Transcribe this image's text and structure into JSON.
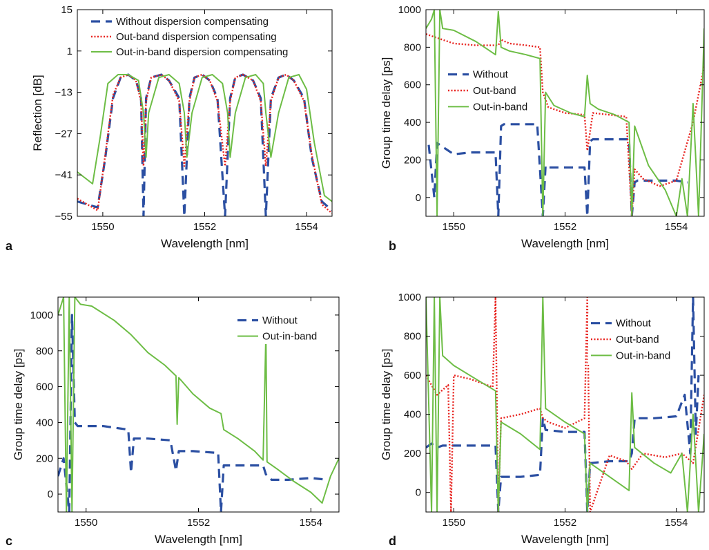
{
  "colors": {
    "without": "#2b4fa2",
    "outband": "#e8231f",
    "outinband": "#6dbd45"
  },
  "chart_data": [
    {
      "panel": "a",
      "type": "line",
      "xlabel": "Wavelength [nm]",
      "ylabel": "Reflection [dB]",
      "xlim": [
        1549.5,
        1554.5
      ],
      "ylim": [
        -55,
        15
      ],
      "xticks": [
        1550,
        1552,
        1554
      ],
      "yticks": [
        15,
        1,
        -13,
        -27,
        -41,
        -55
      ],
      "grid": false,
      "legend_position": "top",
      "series": [
        {
          "name": "Without dispersion compensating",
          "style": "dashed",
          "color_key": "without",
          "x": [
            1549.5,
            1549.9,
            1550.05,
            1550.2,
            1550.35,
            1550.5,
            1550.65,
            1550.75,
            1550.8,
            1550.85,
            1550.95,
            1551.15,
            1551.3,
            1551.5,
            1551.6,
            1551.7,
            1551.8,
            1551.95,
            1552.1,
            1552.25,
            1552.4,
            1552.5,
            1552.6,
            1552.75,
            1552.95,
            1553.1,
            1553.2,
            1553.3,
            1553.45,
            1553.6,
            1553.75,
            1553.95,
            1554.1,
            1554.3,
            1554.5
          ],
          "y": [
            -50,
            -52,
            -35,
            -15,
            -8,
            -7,
            -9,
            -15,
            -55,
            -15,
            -8,
            -7,
            -9,
            -15,
            -55,
            -15,
            -8,
            -7,
            -9,
            -15,
            -55,
            -15,
            -8,
            -7,
            -9,
            -15,
            -55,
            -15,
            -8,
            -7,
            -9,
            -15,
            -35,
            -50,
            -53
          ]
        },
        {
          "name": "Out-band dispersion compensating",
          "style": "dotted",
          "color_key": "outband",
          "x": [
            1549.5,
            1549.9,
            1550.05,
            1550.2,
            1550.35,
            1550.5,
            1550.65,
            1550.75,
            1550.8,
            1550.85,
            1550.95,
            1551.15,
            1551.3,
            1551.5,
            1551.6,
            1551.7,
            1551.8,
            1551.95,
            1552.1,
            1552.25,
            1552.4,
            1552.5,
            1552.6,
            1552.75,
            1552.95,
            1553.1,
            1553.2,
            1553.3,
            1553.45,
            1553.6,
            1553.75,
            1553.95,
            1554.1,
            1554.3,
            1554.5
          ],
          "y": [
            -49,
            -53,
            -34,
            -14,
            -8,
            -7,
            -9,
            -16,
            -38,
            -16,
            -8,
            -7,
            -9,
            -16,
            -38,
            -16,
            -8,
            -7,
            -9,
            -16,
            -38,
            -16,
            -8,
            -7,
            -9,
            -16,
            -38,
            -16,
            -8,
            -7,
            -9,
            -16,
            -34,
            -51,
            -54
          ]
        },
        {
          "name": "Out-in-band dispersion compensating",
          "style": "solid",
          "color_key": "outinband",
          "x": [
            1549.5,
            1549.8,
            1549.95,
            1550.1,
            1550.3,
            1550.5,
            1550.7,
            1550.8,
            1550.85,
            1550.9,
            1551.1,
            1551.3,
            1551.5,
            1551.6,
            1551.65,
            1551.75,
            1551.95,
            1552.15,
            1552.35,
            1552.45,
            1552.5,
            1552.6,
            1552.8,
            1553.0,
            1553.15,
            1553.2,
            1553.3,
            1553.45,
            1553.65,
            1553.85,
            1554.0,
            1554.15,
            1554.35,
            1554.5
          ],
          "y": [
            -40,
            -44,
            -28,
            -10,
            -7,
            -7,
            -9,
            -20,
            -35,
            -20,
            -8,
            -7,
            -10,
            -20,
            -35,
            -20,
            -8,
            -7,
            -10,
            -20,
            -35,
            -20,
            -8,
            -7,
            -10,
            -20,
            -35,
            -20,
            -8,
            -7,
            -12,
            -30,
            -48,
            -50
          ]
        }
      ]
    },
    {
      "panel": "b",
      "type": "line",
      "xlabel": "Wavelength [nm]",
      "ylabel": "Group time delay [ps]",
      "xlim": [
        1549.5,
        1554.5
      ],
      "ylim": [
        -100,
        1000
      ],
      "xticks": [
        1550,
        1552,
        1554
      ],
      "yticks": [
        0,
        200,
        400,
        600,
        800,
        1000
      ],
      "grid": false,
      "legend_position": "center-left",
      "series": [
        {
          "name": "Without",
          "style": "dashed",
          "color_key": "without",
          "x": [
            1549.55,
            1549.65,
            1549.7,
            1550.0,
            1550.3,
            1550.75,
            1550.8,
            1550.85,
            1550.9,
            1551.2,
            1551.5,
            1551.6,
            1551.65,
            1551.7,
            1552.0,
            1552.35,
            1552.4,
            1552.45,
            1552.5,
            1552.8,
            1553.15,
            1553.2,
            1553.25,
            1553.3,
            1553.6,
            1554.0,
            1554.2
          ],
          "y": [
            280,
            0,
            290,
            230,
            240,
            240,
            -100,
            380,
            390,
            390,
            390,
            -100,
            170,
            160,
            160,
            160,
            -100,
            300,
            310,
            310,
            310,
            -100,
            80,
            90,
            90,
            90,
            80
          ]
        },
        {
          "name": "Out-band",
          "style": "dotted",
          "color_key": "outband",
          "x": [
            1549.5,
            1549.7,
            1550.0,
            1550.4,
            1550.8,
            1550.85,
            1551.0,
            1551.3,
            1551.55,
            1551.6,
            1551.7,
            1552.0,
            1552.35,
            1552.4,
            1552.5,
            1552.8,
            1553.1,
            1553.2,
            1553.25,
            1553.4,
            1553.7,
            1554.0,
            1554.3,
            1554.5
          ],
          "y": [
            870,
            850,
            820,
            810,
            810,
            840,
            820,
            810,
            800,
            560,
            480,
            450,
            440,
            250,
            450,
            440,
            430,
            -100,
            150,
            100,
            60,
            90,
            400,
            700
          ]
        },
        {
          "name": "Out-in-band",
          "style": "solid",
          "color_key": "outinband",
          "x": [
            1549.5,
            1549.6,
            1549.65,
            1549.7,
            1549.75,
            1549.8,
            1550.0,
            1550.4,
            1550.75,
            1550.8,
            1550.85,
            1551.0,
            1551.3,
            1551.55,
            1551.6,
            1551.65,
            1551.8,
            1552.1,
            1552.35,
            1552.4,
            1552.45,
            1552.6,
            1552.9,
            1553.15,
            1553.2,
            1553.25,
            1553.5,
            1553.8,
            1554.0,
            1554.1,
            1554.2,
            1554.3,
            1554.4,
            1554.5
          ],
          "y": [
            900,
            950,
            1000,
            -100,
            1000,
            900,
            890,
            830,
            760,
            990,
            800,
            780,
            760,
            740,
            -100,
            560,
            490,
            450,
            430,
            650,
            500,
            470,
            440,
            400,
            -100,
            380,
            170,
            40,
            -100,
            100,
            -100,
            500,
            -100,
            900
          ]
        }
      ]
    },
    {
      "panel": "c",
      "type": "line",
      "xlabel": "Wavelength [nm]",
      "ylabel": "Group time delay [ps]",
      "xlim": [
        1549.5,
        1554.5
      ],
      "ylim": [
        -100,
        1100
      ],
      "xticks": [
        1550,
        1552,
        1554
      ],
      "yticks": [
        0,
        200,
        400,
        600,
        800,
        1000
      ],
      "grid": false,
      "legend_position": "top-center",
      "series": [
        {
          "name": "Without",
          "style": "dashed",
          "color_key": "without",
          "x": [
            1549.5,
            1549.6,
            1549.7,
            1549.75,
            1549.8,
            1549.85,
            1550.0,
            1550.3,
            1550.75,
            1550.8,
            1550.85,
            1551.1,
            1551.5,
            1551.6,
            1551.65,
            1551.9,
            1552.35,
            1552.4,
            1552.45,
            1552.8,
            1553.15,
            1553.2,
            1553.3,
            1553.6,
            1554.0,
            1554.3
          ],
          "y": [
            100,
            200,
            -100,
            1000,
            400,
            380,
            380,
            380,
            360,
            120,
            310,
            310,
            300,
            130,
            240,
            240,
            230,
            -100,
            160,
            160,
            160,
            110,
            80,
            80,
            90,
            80
          ]
        },
        {
          "name": "Out-in-band",
          "style": "solid",
          "color_key": "outinband",
          "x": [
            1549.5,
            1549.6,
            1549.65,
            1549.7,
            1549.75,
            1549.8,
            1549.9,
            1550.1,
            1550.5,
            1550.8,
            1551.1,
            1551.4,
            1551.6,
            1551.62,
            1551.65,
            1551.9,
            1552.2,
            1552.4,
            1552.45,
            1552.7,
            1553.0,
            1553.15,
            1553.2,
            1553.22,
            1553.4,
            1553.7,
            1554.0,
            1554.2,
            1554.35,
            1554.5
          ],
          "y": [
            1000,
            1100,
            -100,
            1100,
            -100,
            1100,
            1060,
            1050,
            970,
            890,
            790,
            720,
            660,
            390,
            650,
            560,
            480,
            450,
            360,
            310,
            240,
            190,
            900,
            180,
            140,
            70,
            10,
            -50,
            100,
            200
          ]
        }
      ]
    },
    {
      "panel": "d",
      "type": "line",
      "xlabel": "Wavelength [nm]",
      "ylabel": "Group time delay [ps]",
      "xlim": [
        1549.5,
        1554.5
      ],
      "ylim": [
        -100,
        1000
      ],
      "xticks": [
        1550,
        1552,
        1554
      ],
      "yticks": [
        0,
        200,
        400,
        600,
        800,
        1000
      ],
      "grid": false,
      "legend_position": "top-right",
      "series": [
        {
          "name": "Without",
          "style": "dashed",
          "color_key": "without",
          "x": [
            1549.5,
            1549.6,
            1549.7,
            1549.8,
            1550.0,
            1550.4,
            1550.75,
            1550.8,
            1550.85,
            1551.2,
            1551.55,
            1551.6,
            1551.65,
            1552.0,
            1552.35,
            1552.4,
            1552.45,
            1552.8,
            1553.15,
            1553.2,
            1553.25,
            1553.6,
            1554.0,
            1554.15,
            1554.25,
            1554.3,
            1554.35,
            1554.4
          ],
          "y": [
            230,
            250,
            230,
            240,
            240,
            240,
            240,
            -100,
            80,
            80,
            90,
            380,
            320,
            310,
            310,
            -100,
            150,
            160,
            160,
            200,
            380,
            380,
            390,
            500,
            200,
            1000,
            300,
            600
          ]
        },
        {
          "name": "Out-band",
          "style": "dotted",
          "color_key": "outband",
          "x": [
            1549.5,
            1549.7,
            1549.9,
            1549.95,
            1550.0,
            1550.3,
            1550.7,
            1550.75,
            1550.8,
            1550.85,
            1551.2,
            1551.55,
            1551.6,
            1551.7,
            1552.0,
            1552.35,
            1552.4,
            1552.45,
            1552.8,
            1553.1,
            1553.2,
            1553.4,
            1553.8,
            1554.1,
            1554.3,
            1554.5
          ],
          "y": [
            600,
            500,
            550,
            -100,
            600,
            580,
            540,
            1000,
            -100,
            380,
            400,
            430,
            380,
            360,
            330,
            380,
            1000,
            -100,
            190,
            160,
            120,
            200,
            180,
            200,
            150,
            500
          ]
        },
        {
          "name": "Out-in-band",
          "style": "solid",
          "color_key": "outinband",
          "x": [
            1549.5,
            1549.6,
            1549.65,
            1549.7,
            1549.75,
            1549.8,
            1550.0,
            1550.4,
            1550.75,
            1550.8,
            1550.85,
            1551.2,
            1551.55,
            1551.6,
            1551.65,
            1552.0,
            1552.35,
            1552.4,
            1552.45,
            1552.8,
            1553.15,
            1553.2,
            1553.25,
            1553.6,
            1553.9,
            1554.1,
            1554.2,
            1554.3,
            1554.4,
            1554.5
          ],
          "y": [
            1000,
            -100,
            1000,
            -100,
            1000,
            700,
            650,
            580,
            520,
            -100,
            360,
            300,
            220,
            1000,
            430,
            360,
            300,
            -100,
            150,
            80,
            10,
            510,
            230,
            150,
            100,
            200,
            -100,
            400,
            -100,
            300
          ]
        }
      ]
    }
  ],
  "panel_labels": [
    "a",
    "b",
    "c",
    "d"
  ]
}
